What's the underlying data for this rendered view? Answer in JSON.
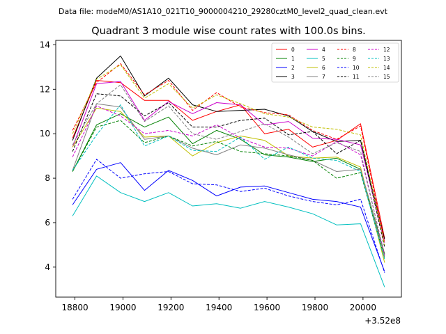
{
  "header": {
    "file_label": "Data file: modeM0/AS1A10_021T10_9000004210_29280cztM0_level2_quad_clean.evt"
  },
  "chart_data": {
    "type": "line",
    "title": "Quadrant 3 module wise count rates with 100.0s bins.",
    "xlabel": "",
    "ylabel": "",
    "x_offset_label": "+3.52e8",
    "x": [
      18790,
      18890,
      18990,
      19090,
      19190,
      19290,
      19390,
      19490,
      19590,
      19690,
      19790,
      19890,
      19990,
      20090
    ],
    "xlim": [
      18720,
      20160
    ],
    "ylim": [
      2.65,
      14.2
    ],
    "xticks": [
      18800,
      19000,
      19200,
      19400,
      19600,
      19800,
      20000
    ],
    "yticks": [
      4,
      6,
      8,
      10,
      12,
      14
    ],
    "xtick_labels": [
      "18800",
      "19000",
      "19200",
      "19400",
      "19600",
      "19800",
      "20000"
    ],
    "ytick_labels": [
      "4",
      "6",
      "8",
      "10",
      "12",
      "14"
    ],
    "grid": false,
    "legend_position": "top-right",
    "series": [
      {
        "name": "0",
        "color": "#ff0000",
        "dash": "solid",
        "values": [
          9.8,
          12.4,
          12.3,
          11.5,
          11.5,
          10.6,
          11.0,
          11.3,
          10.0,
          10.2,
          9.4,
          9.7,
          10.45,
          5.3
        ]
      },
      {
        "name": "1",
        "color": "#008000",
        "dash": "solid",
        "values": [
          8.3,
          10.4,
          10.9,
          10.3,
          10.75,
          9.55,
          10.15,
          9.75,
          9.05,
          8.95,
          8.75,
          8.9,
          8.4,
          4.6
        ]
      },
      {
        "name": "2",
        "color": "#0000ff",
        "dash": "solid",
        "values": [
          6.8,
          8.4,
          8.7,
          7.45,
          8.35,
          7.9,
          7.2,
          7.6,
          7.65,
          7.35,
          7.05,
          6.95,
          6.7,
          3.8
        ]
      },
      {
        "name": "3",
        "color": "#000000",
        "dash": "solid",
        "values": [
          9.7,
          12.5,
          13.5,
          11.7,
          12.5,
          11.3,
          11.0,
          11.05,
          11.1,
          10.8,
          10.1,
          9.65,
          9.7,
          5.25
        ]
      },
      {
        "name": "4",
        "color": "#cc00cc",
        "dash": "solid",
        "values": [
          9.4,
          12.25,
          12.35,
          10.6,
          11.45,
          10.9,
          11.4,
          11.3,
          10.4,
          10.55,
          9.8,
          9.75,
          9.5,
          5.1
        ]
      },
      {
        "name": "5",
        "color": "#00bfbf",
        "dash": "solid",
        "values": [
          6.3,
          8.1,
          7.35,
          6.95,
          7.35,
          6.75,
          6.85,
          6.65,
          6.95,
          6.7,
          6.4,
          5.9,
          5.95,
          3.1
        ]
      },
      {
        "name": "6",
        "color": "#bfbf00",
        "dash": "solid",
        "values": [
          9.4,
          11.15,
          11.0,
          9.85,
          9.9,
          9.0,
          9.6,
          9.9,
          9.7,
          9.0,
          8.9,
          8.95,
          8.5,
          4.2
        ]
      },
      {
        "name": "7",
        "color": "#808080",
        "dash": "solid",
        "values": [
          8.35,
          11.35,
          11.2,
          9.75,
          9.9,
          9.35,
          9.05,
          9.5,
          9.35,
          9.05,
          8.8,
          8.3,
          8.4,
          4.5
        ]
      },
      {
        "name": "8",
        "color": "#ff0000",
        "dash": "dashed",
        "values": [
          10.15,
          12.3,
          13.15,
          11.75,
          12.4,
          11.05,
          11.85,
          11.2,
          10.95,
          10.85,
          10.15,
          9.75,
          10.35,
          5.1
        ]
      },
      {
        "name": "9",
        "color": "#008000",
        "dash": "dashed",
        "values": [
          8.3,
          10.3,
          10.6,
          9.6,
          9.9,
          9.45,
          9.65,
          9.2,
          9.1,
          9.0,
          8.8,
          8.0,
          8.25,
          4.4
        ]
      },
      {
        "name": "10",
        "color": "#0000ff",
        "dash": "dashed",
        "values": [
          7.05,
          8.85,
          8.0,
          8.2,
          8.3,
          7.75,
          7.7,
          7.4,
          7.55,
          7.2,
          6.95,
          6.8,
          7.05,
          3.75
        ]
      },
      {
        "name": "11",
        "color": "#000000",
        "dash": "dashed",
        "values": [
          9.2,
          11.8,
          11.7,
          10.8,
          11.4,
          10.3,
          10.3,
          10.6,
          10.7,
          9.95,
          10.1,
          9.1,
          9.7,
          4.9
        ]
      },
      {
        "name": "12",
        "color": "#cc00cc",
        "dash": "dashed",
        "values": [
          8.95,
          11.25,
          10.8,
          10.0,
          10.15,
          9.9,
          10.4,
          9.8,
          9.4,
          9.35,
          9.0,
          9.65,
          9.05,
          4.55
        ]
      },
      {
        "name": "13",
        "color": "#00bfbf",
        "dash": "dashed",
        "values": [
          8.35,
          9.95,
          11.3,
          9.45,
          9.9,
          9.25,
          9.2,
          9.85,
          8.85,
          9.4,
          8.9,
          8.8,
          8.3,
          4.35
        ]
      },
      {
        "name": "14",
        "color": "#bfbf00",
        "dash": "dashed",
        "values": [
          10.0,
          12.45,
          13.1,
          11.6,
          12.25,
          11.15,
          11.75,
          11.35,
          10.9,
          10.75,
          10.3,
          10.2,
          9.95,
          5.0
        ]
      },
      {
        "name": "15",
        "color": "#808080",
        "dash": "dashed",
        "values": [
          9.5,
          11.35,
          12.2,
          10.55,
          11.25,
          10.0,
          9.75,
          10.1,
          10.45,
          9.85,
          9.1,
          9.6,
          9.2,
          4.45
        ]
      }
    ]
  }
}
